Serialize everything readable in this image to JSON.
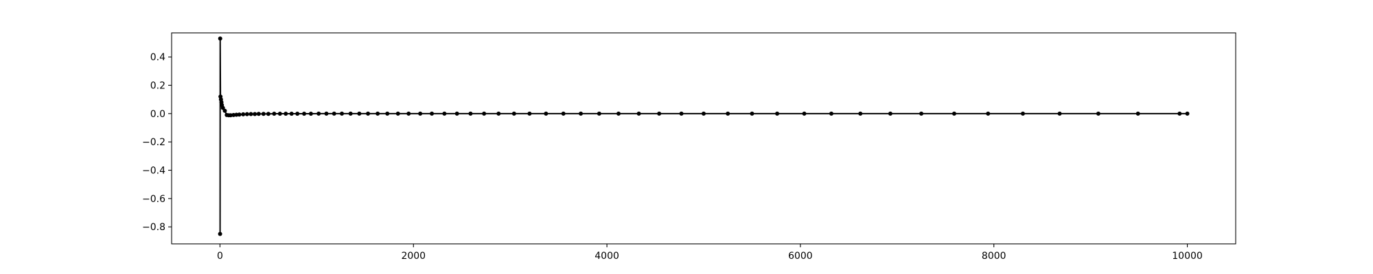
{
  "chart_data": {
    "type": "line",
    "title": "",
    "xlabel": "",
    "ylabel": "",
    "xlim": [
      -500,
      10500
    ],
    "ylim": [
      -0.92,
      0.57
    ],
    "grid": false,
    "legend": "none",
    "xticks": [
      0,
      2000,
      4000,
      6000,
      8000,
      10000
    ],
    "xtick_labels": [
      "0",
      "2000",
      "4000",
      "6000",
      "8000",
      "10000"
    ],
    "yticks": [
      -0.8,
      -0.6,
      -0.4,
      -0.2,
      0.0,
      0.2,
      0.4
    ],
    "ytick_labels": [
      "−0.8",
      "−0.6",
      "−0.4",
      "−0.2",
      "0.0",
      "0.2",
      "0.4"
    ],
    "series": [
      {
        "color": "#000000",
        "marker": "circle",
        "x": [
          1,
          2,
          5,
          10,
          15,
          20,
          30,
          50,
          70,
          90,
          110,
          140,
          170,
          200,
          240,
          280,
          320,
          360,
          400,
          450,
          500,
          560,
          620,
          680,
          740,
          800,
          870,
          940,
          1020,
          1100,
          1180,
          1260,
          1350,
          1440,
          1530,
          1630,
          1730,
          1840,
          1950,
          2070,
          2190,
          2320,
          2450,
          2590,
          2730,
          2880,
          3040,
          3200,
          3370,
          3550,
          3730,
          3920,
          4120,
          4330,
          4540,
          4770,
          5000,
          5250,
          5500,
          5760,
          6040,
          6320,
          6620,
          6930,
          7250,
          7590,
          7940,
          8300,
          8680,
          9080,
          9490,
          9920,
          10000
        ],
        "y": [
          -0.85,
          0.53,
          0.12,
          0.1,
          0.08,
          0.06,
          0.04,
          0.02,
          -0.01,
          -0.012,
          -0.012,
          -0.01,
          -0.008,
          -0.007,
          -0.005,
          -0.004,
          -0.003,
          -0.003,
          -0.002,
          -0.002,
          -0.002,
          -0.001,
          -0.001,
          -0.001,
          -0.001,
          -0.001,
          -0.001,
          -0.001,
          0.0,
          0.0,
          0.0,
          0.0,
          0.0,
          0.0,
          0.0,
          0.0,
          0.0,
          0.0,
          0.0,
          0.0,
          0.0,
          0.0,
          0.0,
          0.0,
          0.0,
          0.0,
          0.0,
          0.0,
          0.0,
          0.0,
          0.0,
          0.0,
          0.0,
          0.0,
          0.0,
          0.0,
          0.0,
          0.0,
          0.0,
          0.0,
          0.0,
          0.0,
          0.0,
          0.0,
          0.0,
          0.0,
          0.0,
          0.0,
          0.0,
          0.0,
          0.0,
          0.0,
          0.0
        ]
      }
    ]
  }
}
